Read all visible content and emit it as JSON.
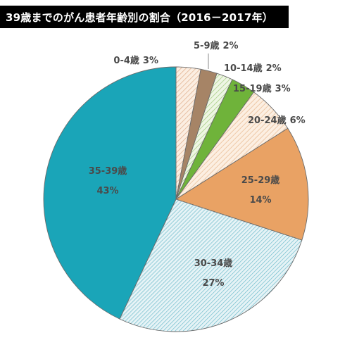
{
  "title": "39歳までのがん患者年齢別の割合（2016－2017年）",
  "chart_data": {
    "type": "pie",
    "categories": [
      "0-4歳",
      "5-9歳",
      "10-14歳",
      "15-19歳",
      "20-24歳",
      "25-29歳",
      "30-34歳",
      "35-39歳"
    ],
    "values": [
      3,
      2,
      2,
      3,
      6,
      14,
      27,
      43
    ],
    "unit": "%",
    "start": "12 o'clock",
    "direction": "clockwise",
    "colors": [
      "#f3d9c4",
      "#a68466",
      "#cfe3b8",
      "#6fb33a",
      "#f6dcc2",
      "#e9a264",
      "#b9d9e2",
      "#1aa5b8"
    ],
    "patterns": [
      "hatch",
      "solid",
      "hatch",
      "solid",
      "hatch",
      "solid",
      "hatch",
      "solid"
    ]
  },
  "labels": [
    {
      "name": "0-4歳",
      "pct": "3%"
    },
    {
      "name": "5-9歳",
      "pct": "2%"
    },
    {
      "name": "10-14歳",
      "pct": "2%"
    },
    {
      "name": "15-19歳",
      "pct": "3%"
    },
    {
      "name": "20-24歳",
      "pct": "6%"
    },
    {
      "name": "25-29歳",
      "pct": "14%"
    },
    {
      "name": "30-34歳",
      "pct": "27%"
    },
    {
      "name": "35-39歳",
      "pct": "43%"
    }
  ]
}
